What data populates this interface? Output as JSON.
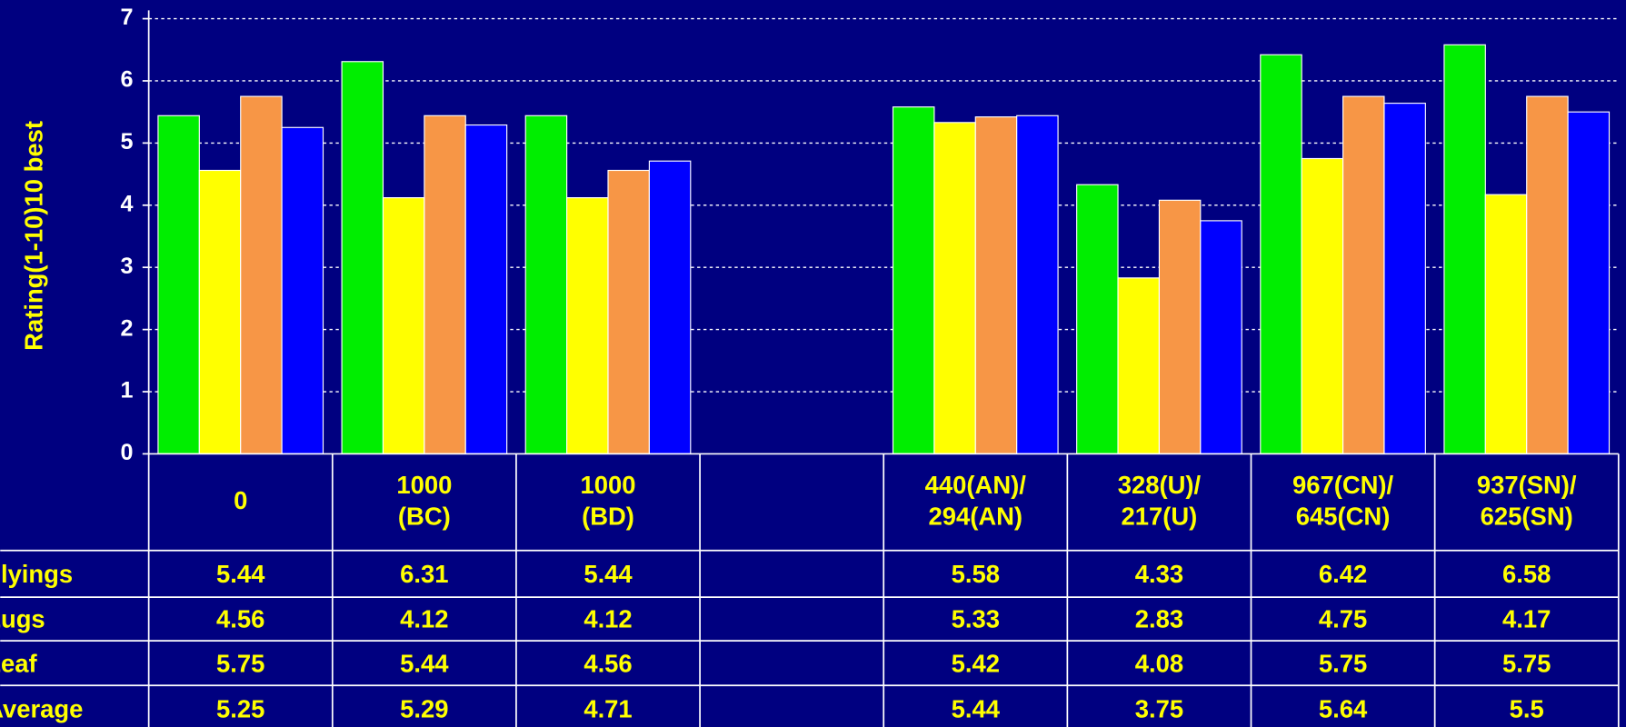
{
  "chart_data": {
    "type": "bar",
    "y_label": "Rating(1-10)10 best",
    "categories": [
      "0",
      "1000\n(BC)",
      "1000\n(BD)",
      null,
      "440(AN)/\n294(AN)",
      "328(U)/\n217(U)",
      "967(CN)/\n645(CN)",
      "937(SN)/\n625(SN)"
    ],
    "series": [
      {
        "name": "Flyings",
        "color": "#00ee00",
        "values": [
          5.44,
          6.31,
          5.44,
          null,
          5.58,
          4.33,
          6.42,
          6.58
        ]
      },
      {
        "name": "Lugs",
        "color": "#ffff00",
        "values": [
          4.56,
          4.12,
          4.12,
          null,
          5.33,
          2.83,
          4.75,
          4.17
        ]
      },
      {
        "name": "Leaf",
        "color": "#f79646",
        "values": [
          5.75,
          5.44,
          4.56,
          null,
          5.42,
          4.08,
          5.75,
          5.75
        ]
      },
      {
        "name": "Average",
        "color": "#0000ff",
        "values": [
          5.25,
          5.29,
          4.71,
          null,
          5.44,
          3.75,
          5.64,
          5.5
        ]
      }
    ],
    "ylim": [
      0,
      7
    ],
    "yticks": [
      0,
      1,
      2,
      3,
      4,
      5,
      6,
      7
    ],
    "grid": true
  }
}
